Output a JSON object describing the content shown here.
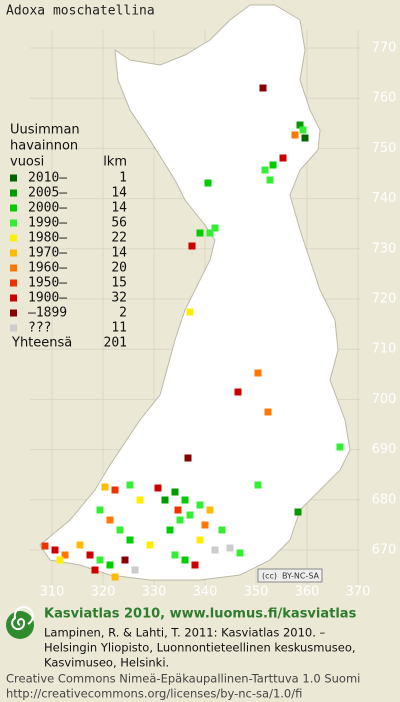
{
  "title": "Adoxa moschatellina",
  "legend": {
    "heading": [
      "Uusimman",
      "havainnon",
      "vuosi"
    ],
    "count_heading": "lkm",
    "items": [
      {
        "label": "2010–",
        "count": 1,
        "color": "#006400"
      },
      {
        "label": "2005–",
        "count": 14,
        "color": "#009900"
      },
      {
        "label": "2000–",
        "count": 14,
        "color": "#00cc00"
      },
      {
        "label": "1990–",
        "count": 56,
        "color": "#33ee33"
      },
      {
        "label": "1980–",
        "count": 22,
        "color": "#ffee00"
      },
      {
        "label": "1970–",
        "count": 14,
        "color": "#ffbb00"
      },
      {
        "label": "1960–",
        "count": 20,
        "color": "#ff7700"
      },
      {
        "label": "1950–",
        "count": 15,
        "color": "#ee3300"
      },
      {
        "label": "1900–",
        "count": 32,
        "color": "#cc0000"
      },
      {
        "label": "–1899",
        "count": 2,
        "color": "#880000"
      },
      {
        "label": "???",
        "count": 11,
        "color": "#cccccc"
      }
    ],
    "total_label": "Yhteensä",
    "total": 201
  },
  "y_labels": [
    770,
    760,
    750,
    740,
    730,
    720,
    710,
    700,
    690,
    680,
    670
  ],
  "x_labels": [
    310,
    320,
    330,
    340,
    350,
    360,
    370
  ],
  "license_badge": "BY-NC-SA",
  "footer": {
    "brand": "Kasviatlas 2010, www.luomus.fi/kasviatlas",
    "citation": [
      "Lampinen, R. & Lahti, T. 2011: Kasviatlas 2010. –",
      "Helsingin Yliopisto, Luonnontieteellinen keskusmuseo,",
      "Kasvimuseo, Helsinki."
    ],
    "license": [
      "Creative Commons Nimeä-Epäkaupallinen-Tarttuva 1.0 Suomi",
      "http://creativecommons.org/licenses/by-nc-sa/1.0/fi"
    ]
  }
}
